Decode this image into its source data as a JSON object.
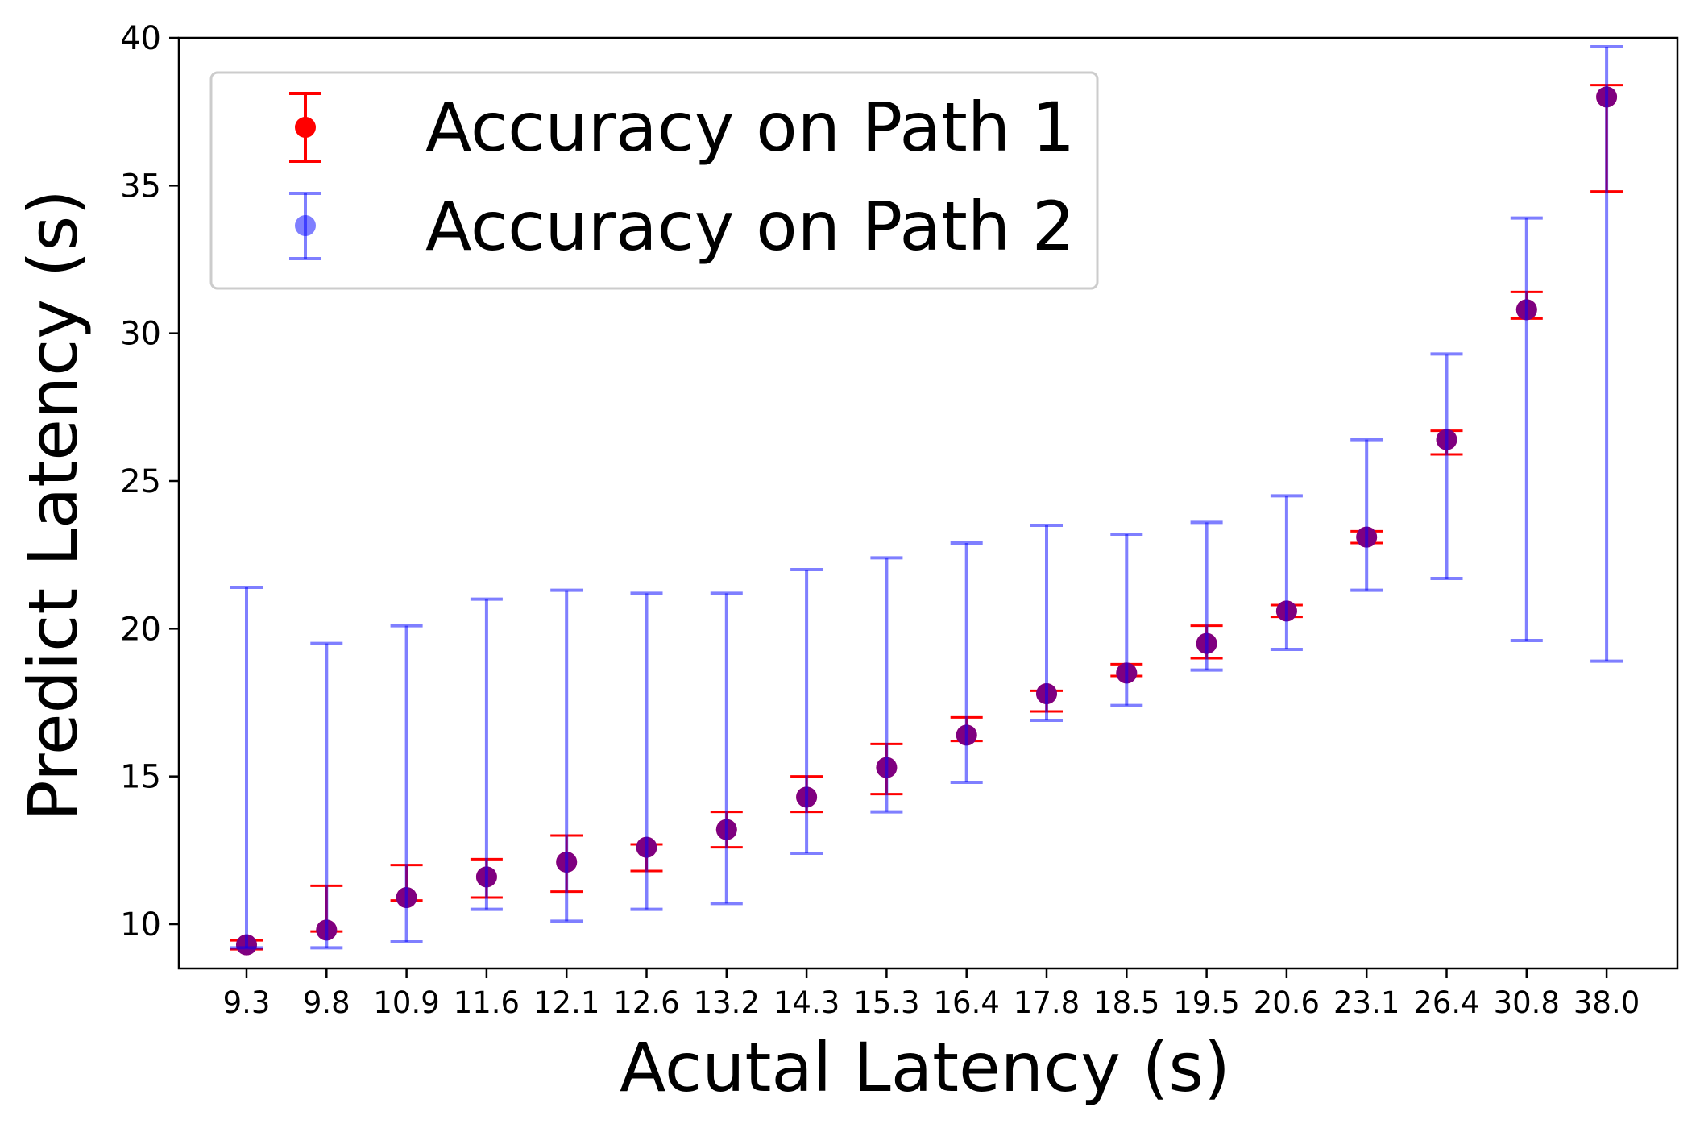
{
  "chart_data": {
    "type": "scatter",
    "xlabel": "Acutal Latency (s)",
    "ylabel": "Predict Latency (s)",
    "ylim": [
      8.5,
      40
    ],
    "yticks": [
      10,
      15,
      20,
      25,
      30,
      35,
      40
    ],
    "categories": [
      "9.3",
      "9.8",
      "10.9",
      "11.6",
      "12.1",
      "12.6",
      "13.2",
      "14.3",
      "15.3",
      "16.4",
      "17.8",
      "18.5",
      "19.5",
      "20.6",
      "23.1",
      "26.4",
      "30.8",
      "38.0"
    ],
    "legend_position": "upper-left",
    "grid": false,
    "colors": {
      "path1": "#ff0000",
      "path2": "#0000ff",
      "overlap_marker": "#6a0080"
    },
    "series": [
      {
        "name": "Accuracy on Path 1",
        "color": "#ff0000",
        "values": [
          9.3,
          9.8,
          10.9,
          11.6,
          12.1,
          12.6,
          13.2,
          14.3,
          15.3,
          16.4,
          17.8,
          18.5,
          19.5,
          20.6,
          23.1,
          26.4,
          30.8,
          38.0
        ],
        "lower": [
          9.15,
          9.75,
          10.8,
          10.9,
          11.1,
          11.8,
          12.6,
          13.8,
          14.4,
          16.2,
          17.2,
          18.4,
          19.0,
          20.4,
          22.9,
          25.9,
          30.5,
          34.8
        ],
        "upper": [
          9.45,
          11.3,
          12.0,
          12.2,
          13.0,
          12.7,
          13.8,
          15.0,
          16.1,
          17.0,
          17.9,
          18.8,
          20.1,
          20.8,
          23.3,
          26.7,
          31.4,
          38.4
        ]
      },
      {
        "name": "Accuracy on Path 2",
        "color": "#0000ff",
        "values": [
          9.3,
          9.8,
          10.9,
          11.6,
          12.1,
          12.6,
          13.2,
          14.3,
          15.3,
          16.4,
          17.8,
          18.5,
          19.5,
          20.6,
          23.1,
          26.4,
          30.8,
          38.0
        ],
        "lower": [
          9.2,
          9.2,
          9.4,
          10.5,
          10.1,
          10.5,
          10.7,
          12.4,
          13.8,
          14.8,
          16.9,
          17.4,
          18.6,
          19.3,
          21.3,
          21.7,
          19.6,
          18.9
        ],
        "upper": [
          21.4,
          19.5,
          20.1,
          21.0,
          21.3,
          21.2,
          21.2,
          22.0,
          22.4,
          22.9,
          23.5,
          23.2,
          23.6,
          24.5,
          26.4,
          29.3,
          33.9,
          39.7
        ]
      }
    ]
  }
}
